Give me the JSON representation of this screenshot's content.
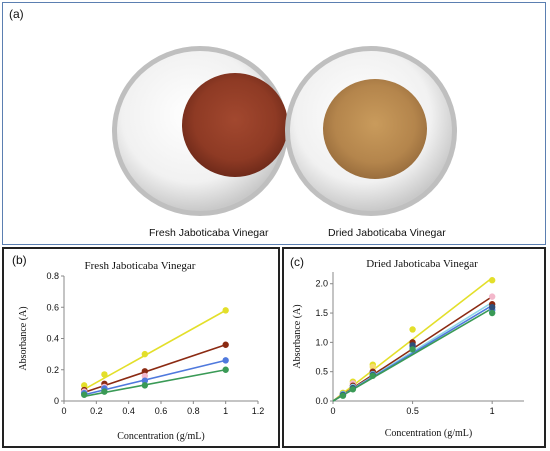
{
  "panels": {
    "a": {
      "label": "(a)",
      "left_caption": "Fresh Jaboticaba Vinegar",
      "right_caption": "Dried Jaboticaba Vinegar"
    },
    "b": {
      "label": "(b)"
    },
    "c": {
      "label": "(c)"
    }
  },
  "colors": {
    "yellow": "#e3df2a",
    "red": "#8b2a12",
    "blue": "#4f79dd",
    "green": "#3a9a56",
    "pink": "#f3b8cb",
    "lightblue": "#8fd6e8",
    "navy": "#2f4f7a",
    "yellow_light": "#f7dc6f"
  },
  "chart_data": [
    {
      "type": "scatter",
      "title": "Fresh Jaboticaba Vinegar",
      "xlabel": "Concentration (g/mL)",
      "ylabel": "Absorbance (A)",
      "xlim": [
        0,
        1.2
      ],
      "ylim": [
        0,
        0.8
      ],
      "xticks": [
        "0",
        "0.2",
        "0.4",
        "0.6",
        "0.8",
        "1",
        "1.2"
      ],
      "yticks": [
        "0",
        "0.2",
        "0.4",
        "0.6",
        "0.8"
      ],
      "series": [
        {
          "color": "yellow",
          "x": [
            0.125,
            0.25,
            0.5,
            1.0
          ],
          "y": [
            0.1,
            0.17,
            0.3,
            0.58
          ],
          "trend": [
            [
              0.125,
              0.075
            ],
            [
              1.0,
              0.58
            ]
          ]
        },
        {
          "color": "red",
          "x": [
            0.125,
            0.25,
            0.5,
            1.0
          ],
          "y": [
            0.07,
            0.11,
            0.19,
            0.36
          ],
          "trend": [
            [
              0.125,
              0.055
            ],
            [
              1.0,
              0.36
            ]
          ]
        },
        {
          "color": "pink",
          "x": [
            0.125,
            0.25,
            0.5
          ],
          "y": [
            0.06,
            0.09,
            0.16
          ],
          "trend": []
        },
        {
          "color": "lightblue",
          "x": [
            0.125,
            0.25
          ],
          "y": [
            0.05,
            0.08
          ],
          "trend": []
        },
        {
          "color": "blue",
          "x": [
            0.125,
            0.25,
            0.5,
            1.0
          ],
          "y": [
            0.05,
            0.08,
            0.13,
            0.26
          ],
          "trend": [
            [
              0.125,
              0.04
            ],
            [
              1.0,
              0.26
            ]
          ]
        },
        {
          "color": "green",
          "x": [
            0.125,
            0.25,
            0.5,
            1.0
          ],
          "y": [
            0.04,
            0.06,
            0.1,
            0.2
          ],
          "trend": [
            [
              0.125,
              0.03
            ],
            [
              1.0,
              0.2
            ]
          ]
        }
      ]
    },
    {
      "type": "scatter",
      "title": "Dried Jaboticaba Vinegar",
      "xlabel": "Concentration (g/mL)",
      "ylabel": "Absorbance (A)",
      "xlim": [
        0,
        1.2
      ],
      "ylim": [
        0,
        2.2
      ],
      "xticks": [
        "0",
        "0.5",
        "1"
      ],
      "yticks": [
        "0.0",
        "0.5",
        "1.0",
        "1.5",
        "2.0"
      ],
      "series": [
        {
          "color": "yellow",
          "x": [
            0.0625,
            0.125,
            0.25,
            0.5,
            1.0
          ],
          "y": [
            0.14,
            0.33,
            0.62,
            1.22,
            2.06
          ],
          "trend": [
            [
              0,
              0.0
            ],
            [
              1.0,
              2.1
            ]
          ]
        },
        {
          "color": "yellow_light",
          "x": [
            0.25
          ],
          "y": [
            0.58
          ],
          "trend": []
        },
        {
          "color": "pink",
          "x": [
            0.125,
            0.5,
            1.0
          ],
          "y": [
            0.3,
            0.98,
            1.78
          ],
          "trend": []
        },
        {
          "color": "red",
          "x": [
            0.0625,
            0.125,
            0.25,
            0.5,
            1.0
          ],
          "y": [
            0.12,
            0.26,
            0.5,
            1.0,
            1.65
          ],
          "trend": [
            [
              0,
              0.0
            ],
            [
              1.0,
              1.78
            ]
          ]
        },
        {
          "color": "lightblue",
          "x": [
            0.0625,
            0.125,
            0.25,
            0.5,
            1.0
          ],
          "y": [
            0.12,
            0.24,
            0.46,
            0.9,
            1.56
          ],
          "trend": [
            [
              0,
              0.0
            ],
            [
              1.0,
              1.68
            ]
          ]
        },
        {
          "color": "blue",
          "x": [
            0.0625,
            0.125,
            0.25,
            0.5,
            1.0
          ],
          "y": [
            0.11,
            0.22,
            0.45,
            0.92,
            1.55
          ],
          "trend": [
            [
              0,
              0.0
            ],
            [
              1.0,
              1.63
            ]
          ]
        },
        {
          "color": "navy",
          "x": [
            0.0625,
            0.125,
            0.25,
            0.5,
            1.0
          ],
          "y": [
            0.1,
            0.22,
            0.44,
            0.95,
            1.6
          ],
          "trend": []
        },
        {
          "color": "green",
          "x": [
            0.0625,
            0.125,
            0.25,
            0.5,
            1.0
          ],
          "y": [
            0.09,
            0.2,
            0.43,
            0.88,
            1.5
          ],
          "trend": [
            [
              0,
              0.0
            ],
            [
              1.0,
              1.58
            ]
          ]
        }
      ]
    }
  ]
}
